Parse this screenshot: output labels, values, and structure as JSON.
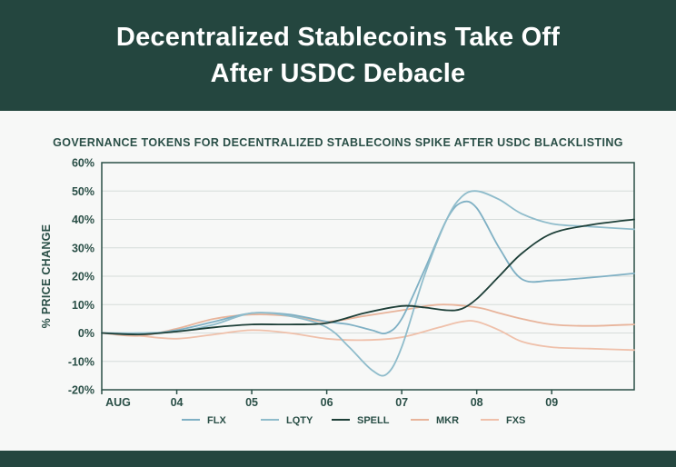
{
  "header": {
    "title_line1": "Decentralized Stablecoins Take Off",
    "title_line2": "After USDC Debacle"
  },
  "chart_data": {
    "type": "line",
    "title": "GOVERNANCE TOKENS FOR DECENTRALIZED STABLECOINS SPIKE AFTER USDC BLACKLISTING",
    "xlabel": "",
    "ylabel": "% PRICE CHANGE",
    "ylim": [
      -20,
      60
    ],
    "yticks": [
      -20,
      -10,
      0,
      10,
      20,
      30,
      40,
      50,
      60
    ],
    "ytick_labels": [
      "-20%",
      "-10%",
      "0%",
      "10%",
      "20%",
      "30%",
      "40%",
      "50%",
      "60%"
    ],
    "xlim": [
      0,
      7.1
    ],
    "xticks": [
      0,
      1,
      2,
      3,
      4,
      5,
      6
    ],
    "xtick_labels": [
      "AUG",
      "04",
      "05",
      "06",
      "07",
      "08",
      "09"
    ],
    "grid": true,
    "legend": "bottom",
    "series": [
      {
        "name": "FLX",
        "color": "#7fb0c4",
        "x": [
          0,
          0.5,
          1,
          1.5,
          2,
          2.5,
          3,
          3.3,
          3.6,
          3.8,
          4,
          4.3,
          4.6,
          4.8,
          5,
          5.3,
          5.6,
          6,
          6.5,
          7.1
        ],
        "y": [
          0,
          -0.5,
          1,
          4,
          7,
          6.5,
          4,
          3,
          1,
          0,
          5,
          22,
          40,
          46,
          44,
          30,
          19,
          18.5,
          19.5,
          21
        ]
      },
      {
        "name": "LQTY",
        "color": "#8fbccb",
        "x": [
          0,
          0.5,
          1,
          1.5,
          2,
          2.5,
          3,
          3.3,
          3.6,
          3.8,
          4,
          4.3,
          4.6,
          4.8,
          5,
          5.3,
          5.6,
          6,
          6.5,
          7.1
        ],
        "y": [
          0,
          0,
          0.5,
          3,
          7,
          6,
          2,
          -5,
          -13,
          -14.5,
          -5,
          20,
          40,
          48,
          50,
          47,
          42,
          38.5,
          37.5,
          36.5
        ]
      },
      {
        "name": "SPELL",
        "color": "#1d3f38",
        "x": [
          0,
          0.5,
          1,
          1.5,
          2,
          2.5,
          3,
          3.5,
          4,
          4.3,
          4.6,
          4.8,
          5,
          5.3,
          5.6,
          6,
          6.5,
          7.1
        ],
        "y": [
          0,
          -0.5,
          0.5,
          2,
          3,
          3,
          3.5,
          7,
          9.5,
          9,
          8,
          8.5,
          12,
          20,
          28,
          35,
          38,
          40
        ]
      },
      {
        "name": "MKR",
        "color": "#e8b49b",
        "x": [
          0,
          0.5,
          1,
          1.5,
          2,
          2.5,
          3,
          3.5,
          4,
          4.5,
          5,
          5.3,
          5.6,
          6,
          6.5,
          7.1
        ],
        "y": [
          0,
          -1,
          1.5,
          5,
          6.5,
          6,
          4,
          6,
          8,
          10,
          9,
          7,
          5,
          3,
          2.5,
          3
        ]
      },
      {
        "name": "FXS",
        "color": "#efc0aa",
        "x": [
          0,
          0.5,
          1,
          1.5,
          2,
          2.5,
          3,
          3.5,
          4,
          4.5,
          4.8,
          5,
          5.3,
          5.6,
          6,
          6.5,
          7.1
        ],
        "y": [
          0,
          -1,
          -2,
          -0.5,
          1,
          0,
          -2,
          -2.5,
          -1.5,
          2,
          4,
          4,
          1,
          -3,
          -5,
          -5.5,
          -6
        ]
      }
    ]
  }
}
